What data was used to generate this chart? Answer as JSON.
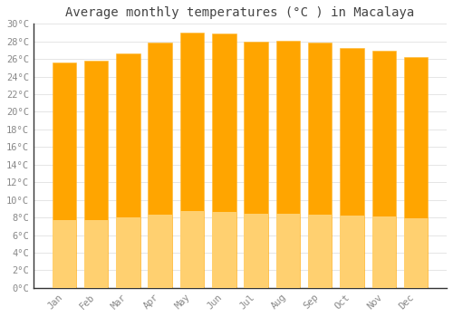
{
  "title": "Average monthly temperatures (°C ) in Macalaya",
  "months": [
    "Jan",
    "Feb",
    "Mar",
    "Apr",
    "May",
    "Jun",
    "Jul",
    "Aug",
    "Sep",
    "Oct",
    "Nov",
    "Dec"
  ],
  "values": [
    25.6,
    25.8,
    26.6,
    27.9,
    29.0,
    28.9,
    28.0,
    28.1,
    27.9,
    27.3,
    26.9,
    26.2
  ],
  "bar_color_top": "#FFA500",
  "bar_color_bottom": "#FFD070",
  "bar_edge_color": "#FFB830",
  "ylim": [
    0,
    30
  ],
  "ytick_step": 2,
  "background_color": "#ffffff",
  "plot_bg_color": "#ffffff",
  "grid_color": "#e0e0e0",
  "title_fontsize": 10,
  "tick_fontsize": 7.5,
  "tick_label_color": "#888888",
  "font_family": "monospace",
  "bar_width": 0.75
}
